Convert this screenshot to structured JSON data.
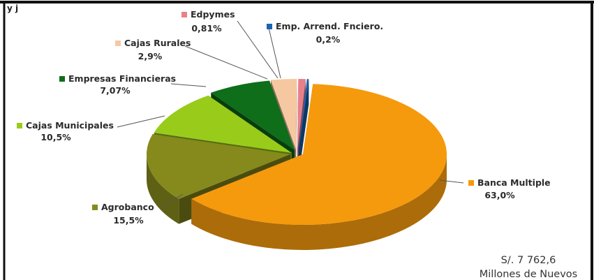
{
  "chart_data": {
    "type": "pie",
    "title": "",
    "top_fragment": "y j",
    "slices": [
      {
        "label": "Banca Multiple",
        "value": 63.0,
        "value_label": "63,0%",
        "color": "#f59a0d"
      },
      {
        "label": "Agrobanco",
        "value": 15.5,
        "value_label": "15,5%",
        "color": "#868a1c"
      },
      {
        "label": "Cajas Municipales",
        "value": 10.5,
        "value_label": "10,5%",
        "color": "#99cc1a"
      },
      {
        "label": "Empresas Financieras",
        "value": 7.07,
        "value_label": "7,07%",
        "color": "#0e6e1a"
      },
      {
        "label": "Cajas Rurales",
        "value": 2.9,
        "value_label": "2,9%",
        "color": "#f6c8a2"
      },
      {
        "label": "Edpymes",
        "value": 0.81,
        "value_label": "0,81%",
        "color": "#e8808a"
      },
      {
        "label": "Emp. Arrend. Fnciero.",
        "value": 0.2,
        "value_label": "0,2%",
        "color": "#1a64b4"
      }
    ],
    "total": {
      "line1": "S/. 7 762,6",
      "line2": "Millones de Nuevos"
    }
  }
}
